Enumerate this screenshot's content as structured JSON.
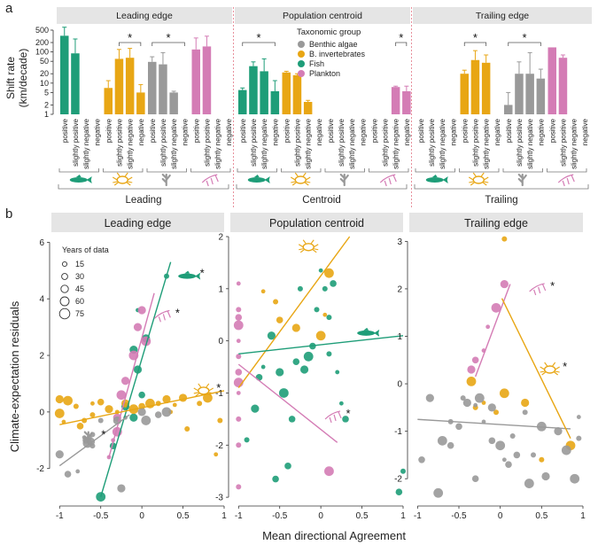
{
  "figure": {
    "panel_a_letter": "a",
    "panel_b_letter": "b",
    "y_label_a": "Shift rate",
    "y_label_a2": "(km/decade)",
    "y_label_b": "Climate-expectation residuals",
    "x_label_b": "Mean directional Agreement"
  },
  "colors": {
    "algae": "#999999",
    "invert": "#E8A614",
    "fish": "#1E9D78",
    "plankton": "#D47CB5",
    "strip": "#E5E5E5",
    "divider": "#E8909C"
  },
  "legend": {
    "title": "Taxonomic group",
    "items": [
      {
        "key": "algae",
        "label": "Benthic algae"
      },
      {
        "key": "invert",
        "label": "B. invertebrates"
      },
      {
        "key": "fish",
        "label": "Fish"
      },
      {
        "key": "plankton",
        "label": "Plankton"
      }
    ]
  },
  "size_legend": {
    "title": "Years of data",
    "values": [
      "15",
      "30",
      "45",
      "60",
      "75"
    ]
  },
  "chart_data": [
    {
      "type": "bar",
      "id": "a",
      "scale": "log",
      "ylabel": "Shift rate (km/decade)",
      "yticks": [
        "1",
        "2",
        "5",
        "10",
        "20",
        "50",
        "100",
        "200",
        "500"
      ],
      "ylim": [
        1,
        500
      ],
      "facets": [
        "Leading edge",
        "Population centroid",
        "Trailing edge"
      ],
      "groups_bottom": [
        "Leading",
        "Centroid",
        "Trailing"
      ],
      "categories": [
        "positive",
        "slightly positive",
        "slightly negative",
        "negative"
      ],
      "significance_marker": "*",
      "series": [
        {
          "edge": "leading",
          "taxon": "fish",
          "values": [
            330,
            90,
            null,
            null
          ],
          "err": [
            620,
            260,
            null,
            null
          ]
        },
        {
          "edge": "leading",
          "taxon": "invert",
          "values": [
            7,
            60,
            65,
            5
          ],
          "err": [
            12,
            120,
            130,
            9
          ]
        },
        {
          "edge": "leading",
          "taxon": "algae",
          "values": [
            48,
            40,
            5,
            null
          ],
          "err": [
            70,
            95,
            5.5,
            null
          ]
        },
        {
          "edge": "leading",
          "taxon": "plankton",
          "values": [
            120,
            150,
            null,
            null
          ],
          "err": [
            280,
            320,
            null,
            null
          ]
        },
        {
          "edge": "centroid",
          "taxon": "fish",
          "values": [
            6,
            35,
            24,
            5.5
          ],
          "err": [
            7,
            48,
            60,
            12
          ]
        },
        {
          "edge": "centroid",
          "taxon": "invert",
          "values": [
            22,
            18,
            2.5,
            null
          ],
          "err": [
            24,
            20,
            2.8,
            null
          ]
        },
        {
          "edge": "centroid",
          "taxon": "algae",
          "values": [
            null,
            null,
            null,
            null
          ],
          "err": [
            null,
            null,
            null,
            null
          ]
        },
        {
          "edge": "centroid",
          "taxon": "plankton",
          "values": [
            null,
            null,
            7.5,
            5.5
          ],
          "err": [
            null,
            null,
            8,
            8
          ]
        },
        {
          "edge": "trailing",
          "taxon": "fish",
          "values": [
            null,
            null,
            null,
            null
          ],
          "err": [
            null,
            null,
            null,
            null
          ]
        },
        {
          "edge": "trailing",
          "taxon": "invert",
          "values": [
            20,
            55,
            45,
            null
          ],
          "err": [
            26,
            110,
            80,
            null
          ]
        },
        {
          "edge": "trailing",
          "taxon": "algae",
          "values": [
            2,
            20,
            20,
            14
          ],
          "err": [
            5,
            48,
            95,
            28
          ]
        },
        {
          "edge": "trailing",
          "taxon": "plankton",
          "values": [
            140,
            65,
            null,
            null
          ],
          "err": [
            null,
            80,
            null,
            null
          ]
        }
      ]
    },
    {
      "type": "scatter",
      "id": "b-leading",
      "title": "Leading edge",
      "xlim": [
        -1.1,
        1.0
      ],
      "ylim": [
        -3.2,
        6.2
      ],
      "xticks": [
        -1,
        -0.5,
        0,
        0.5,
        1
      ],
      "xtick_labels": [
        "-1",
        "-0.5",
        "0",
        "0.5",
        "1"
      ],
      "yticks": [
        -2,
        0,
        2,
        4,
        6
      ],
      "ytick_labels": [
        "-2",
        "0",
        "2",
        "4",
        "6"
      ],
      "lines": [
        {
          "taxon": "fish",
          "x": [
            -0.5,
            0.35
          ],
          "y": [
            -3.0,
            5.3
          ]
        },
        {
          "taxon": "plankton",
          "x": [
            -0.4,
            0.15
          ],
          "y": [
            -1.6,
            4.2
          ]
        },
        {
          "taxon": "invert",
          "x": [
            -1.0,
            1.0
          ],
          "y": [
            -0.45,
            0.75
          ]
        },
        {
          "taxon": "algae",
          "x": [
            -1.0,
            -0.15
          ],
          "y": [
            -1.9,
            -0.1
          ]
        }
      ],
      "icons": [
        {
          "taxon": "fish",
          "shape": "fish",
          "x": 0.55,
          "y": 4.8,
          "star": true
        },
        {
          "taxon": "plankton",
          "shape": "plankton",
          "x": 0.25,
          "y": 3.4,
          "star": true
        },
        {
          "taxon": "invert",
          "shape": "crab",
          "x": 0.75,
          "y": 0.75,
          "star": true
        },
        {
          "taxon": "algae",
          "shape": "algae",
          "x": -0.65,
          "y": -0.9,
          "star": true
        }
      ],
      "points": {
        "fish": [
          [
            0.3,
            4.8
          ],
          [
            -0.05,
            3.6
          ],
          [
            -0.1,
            2.2
          ],
          [
            -0.05,
            1.5
          ],
          [
            0.0,
            0.6
          ],
          [
            -0.2,
            0.2
          ],
          [
            -0.1,
            -0.2
          ],
          [
            -0.35,
            -1.2
          ],
          [
            -0.5,
            -3.0
          ],
          [
            0.05,
            2.6
          ]
        ],
        "plankton": [
          [
            0.0,
            3.6
          ],
          [
            -0.05,
            3.0
          ],
          [
            0.05,
            2.5
          ],
          [
            -0.1,
            2.0
          ],
          [
            -0.2,
            1.1
          ],
          [
            -0.25,
            0.6
          ],
          [
            -0.3,
            -0.2
          ],
          [
            -0.3,
            -0.7
          ],
          [
            -0.35,
            -1.0
          ],
          [
            -0.4,
            -1.6
          ]
        ],
        "invert": [
          [
            -1.0,
            0.45
          ],
          [
            -1.0,
            -0.05
          ],
          [
            -0.95,
            -0.35
          ],
          [
            -0.9,
            0.4
          ],
          [
            -0.8,
            0.2
          ],
          [
            -0.7,
            -0.3
          ],
          [
            -0.6,
            0.3
          ],
          [
            -0.5,
            0.35
          ],
          [
            -0.4,
            0.1
          ],
          [
            -0.3,
            0.0
          ],
          [
            -0.2,
            0.3
          ],
          [
            -0.1,
            0.1
          ],
          [
            0.0,
            0.2
          ],
          [
            0.1,
            0.3
          ],
          [
            0.2,
            0.3
          ],
          [
            0.3,
            0.45
          ],
          [
            0.4,
            0.25
          ],
          [
            0.5,
            0.5
          ],
          [
            0.55,
            -0.6
          ],
          [
            0.7,
            0.3
          ],
          [
            0.8,
            0.5
          ],
          [
            0.9,
            -1.5
          ],
          [
            -0.6,
            -0.1
          ],
          [
            -0.75,
            -0.5
          ],
          [
            0.35,
            0.0
          ],
          [
            0.95,
            -0.3
          ]
        ],
        "algae": [
          [
            -1.0,
            -1.5
          ],
          [
            -0.9,
            -2.2
          ],
          [
            -0.78,
            -2.1
          ],
          [
            -0.7,
            -0.9
          ],
          [
            -0.68,
            -1.0
          ],
          [
            -0.66,
            -1.1
          ],
          [
            -0.64,
            -0.9
          ],
          [
            -0.62,
            -1.05
          ],
          [
            -0.6,
            -0.8
          ],
          [
            -0.6,
            -1.2
          ],
          [
            -0.5,
            -0.3
          ],
          [
            -0.3,
            -0.3
          ],
          [
            -0.2,
            -0.2
          ],
          [
            0.0,
            0.0
          ],
          [
            0.05,
            -0.3
          ],
          [
            0.2,
            -0.1
          ],
          [
            0.3,
            0.0
          ],
          [
            -0.25,
            -2.7
          ]
        ]
      }
    },
    {
      "type": "scatter",
      "id": "b-centroid",
      "title": "Population centroid",
      "xlim": [
        -1.1,
        1.0
      ],
      "ylim": [
        -3.1,
        2.0
      ],
      "xticks": [
        -1,
        -0.5,
        0,
        0.5,
        1
      ],
      "xtick_labels": [
        "-1",
        "-0.5",
        "0",
        "0.5",
        "1"
      ],
      "yticks": [
        -3,
        -2,
        -1,
        0,
        1,
        2
      ],
      "ytick_labels": [
        "-3",
        "-2",
        "-1",
        "0",
        "1",
        "2"
      ],
      "lines": [
        {
          "taxon": "invert",
          "x": [
            -1.0,
            0.35
          ],
          "y": [
            -0.9,
            2.0
          ]
        },
        {
          "taxon": "fish",
          "x": [
            -1.0,
            1.0
          ],
          "y": [
            -0.25,
            0.1
          ]
        },
        {
          "taxon": "plankton",
          "x": [
            -1.0,
            0.2
          ],
          "y": [
            -0.45,
            -1.95
          ]
        }
      ],
      "icons": [
        {
          "taxon": "invert",
          "shape": "crab",
          "x": -0.15,
          "y": 1.8,
          "star": false
        },
        {
          "taxon": "fish",
          "shape": "fish",
          "x": 0.55,
          "y": 0.15,
          "star": false
        },
        {
          "taxon": "plankton",
          "shape": "plankton",
          "x": 0.15,
          "y": -1.45,
          "star": true
        }
      ],
      "points": {
        "fish": [
          [
            -0.9,
            -1.9
          ],
          [
            -0.75,
            -0.7
          ],
          [
            -0.7,
            -0.5
          ],
          [
            -0.6,
            0.1
          ],
          [
            -0.5,
            -0.6
          ],
          [
            -0.45,
            -1.0
          ],
          [
            -0.4,
            -2.4
          ],
          [
            -0.35,
            -1.5
          ],
          [
            -0.3,
            -0.4
          ],
          [
            -0.2,
            -0.55
          ],
          [
            -0.1,
            -0.1
          ],
          [
            -0.05,
            0.6
          ],
          [
            0.0,
            1.35
          ],
          [
            0.05,
            1.0
          ],
          [
            0.1,
            0.45
          ],
          [
            0.2,
            -0.6
          ],
          [
            0.25,
            -1.2
          ],
          [
            0.3,
            -1.5
          ],
          [
            -0.25,
            1.0
          ],
          [
            -0.15,
            -0.3
          ],
          [
            0.1,
            -0.25
          ],
          [
            0.15,
            1.1
          ],
          [
            0.95,
            -2.9
          ],
          [
            1.0,
            -2.5
          ],
          [
            -0.55,
            -2.65
          ],
          [
            -0.8,
            -1.3
          ]
        ],
        "plankton": [
          [
            -1.0,
            1.1
          ],
          [
            -1.0,
            0.6
          ],
          [
            -1.0,
            0.45
          ],
          [
            -1.0,
            0.3
          ],
          [
            -1.0,
            0.0
          ],
          [
            -1.0,
            -0.3
          ],
          [
            -1.0,
            -0.6
          ],
          [
            -1.0,
            -0.8
          ],
          [
            -1.0,
            -1.0
          ],
          [
            -1.0,
            -1.5
          ],
          [
            -1.0,
            -2.0
          ],
          [
            -1.0,
            -2.8
          ],
          [
            0.1,
            -2.5
          ]
        ],
        "invert": [
          [
            -0.7,
            0.95
          ],
          [
            -0.55,
            0.75
          ],
          [
            -0.5,
            0.4
          ],
          [
            0.05,
            0.5
          ],
          [
            0.1,
            1.3
          ],
          [
            -0.3,
            0.25
          ],
          [
            0.0,
            0.1
          ]
        ]
      }
    },
    {
      "type": "scatter",
      "id": "b-trailing",
      "title": "Trailing edge",
      "xlim": [
        -1.1,
        1.0
      ],
      "ylim": [
        -2.5,
        3.1
      ],
      "xticks": [
        -1,
        -0.5,
        0,
        0.5,
        1
      ],
      "xtick_labels": [
        "-1",
        "-0.5",
        "0",
        "0.5",
        "1"
      ],
      "yticks": [
        -2,
        -1,
        0,
        1,
        2,
        3
      ],
      "ytick_labels": [
        "-2",
        "-1",
        "0",
        "1",
        "2",
        "3"
      ],
      "lines": [
        {
          "taxon": "algae",
          "x": [
            -1.0,
            0.85
          ],
          "y": [
            -0.75,
            -0.95
          ]
        },
        {
          "taxon": "plankton",
          "x": [
            -0.3,
            0.12
          ],
          "y": [
            0.15,
            2.1
          ]
        },
        {
          "taxon": "invert",
          "x": [
            0.02,
            0.85
          ],
          "y": [
            1.8,
            -1.15
          ]
        }
      ],
      "icons": [
        {
          "taxon": "plankton",
          "shape": "plankton",
          "x": 0.45,
          "y": 2.0,
          "star": true
        },
        {
          "taxon": "invert",
          "shape": "crab",
          "x": 0.6,
          "y": 0.3,
          "star": true
        }
      ],
      "points": {
        "plankton": [
          [
            0.05,
            2.1
          ],
          [
            -0.05,
            1.6
          ],
          [
            -0.15,
            1.2
          ],
          [
            -0.2,
            0.7
          ],
          [
            -0.3,
            0.5
          ],
          [
            -0.35,
            0.3
          ]
        ],
        "invert": [
          [
            0.05,
            3.05
          ],
          [
            -0.35,
            0.05
          ],
          [
            -0.2,
            -0.4
          ],
          [
            -0.05,
            -0.6
          ],
          [
            0.05,
            -0.2
          ],
          [
            -0.3,
            -0.5
          ],
          [
            0.3,
            -0.4
          ],
          [
            0.5,
            -1.6
          ],
          [
            0.85,
            -1.3
          ]
        ],
        "algae": [
          [
            -0.95,
            -1.6
          ],
          [
            -0.85,
            -0.3
          ],
          [
            -0.75,
            -2.3
          ],
          [
            -0.6,
            -0.8
          ],
          [
            -0.5,
            -0.9
          ],
          [
            -0.45,
            -0.3
          ],
          [
            -0.4,
            -0.4
          ],
          [
            -0.3,
            -0.45
          ],
          [
            -0.3,
            -2.0
          ],
          [
            -0.25,
            -0.3
          ],
          [
            -0.2,
            -0.8
          ],
          [
            -0.1,
            -0.5
          ],
          [
            -0.1,
            -1.2
          ],
          [
            0.0,
            -1.3
          ],
          [
            0.05,
            -1.6
          ],
          [
            0.1,
            -1.7
          ],
          [
            0.15,
            -1.1
          ],
          [
            0.2,
            -1.5
          ],
          [
            0.3,
            -0.6
          ],
          [
            0.4,
            -1.5
          ],
          [
            0.5,
            -0.9
          ],
          [
            0.55,
            -1.95
          ],
          [
            0.7,
            -1.0
          ],
          [
            0.8,
            -1.4
          ],
          [
            0.9,
            -2.0
          ],
          [
            0.95,
            -0.7
          ],
          [
            0.95,
            -1.15
          ],
          [
            -0.6,
            -1.3
          ],
          [
            -0.7,
            -1.2
          ],
          [
            0.35,
            -2.1
          ]
        ]
      }
    }
  ]
}
